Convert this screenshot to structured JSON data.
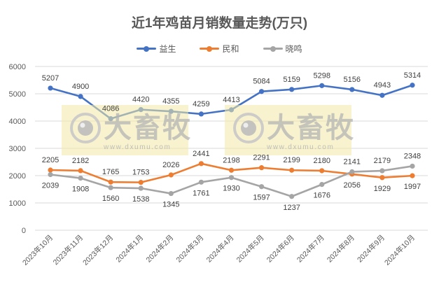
{
  "chart_data": {
    "type": "line",
    "title": "近1年鸡苗月销数量走势(万只)",
    "xlabel": "",
    "ylabel": "",
    "ylim": [
      0,
      6000
    ],
    "yticks": [
      0,
      1000,
      2000,
      3000,
      4000,
      5000,
      6000
    ],
    "grid": true,
    "legend_position": "top",
    "categories": [
      "2023年10月",
      "2023年11月",
      "2023年12月",
      "2024年1月",
      "2024年2月",
      "2024年3月",
      "2024年4月",
      "2024年5月",
      "2024年6月",
      "2024年7月",
      "2024年8月",
      "2024年9月",
      "2024年10月"
    ],
    "series": [
      {
        "name": "益生",
        "color": "#4472C4",
        "values": [
          5207,
          4900,
          4086,
          4420,
          4355,
          4259,
          4413,
          5084,
          5159,
          5298,
          5156,
          4943,
          5314
        ],
        "label_pos": "above"
      },
      {
        "name": "民和",
        "color": "#ED7D31",
        "values": [
          2205,
          2182,
          1765,
          1753,
          2026,
          2441,
          2198,
          2291,
          2199,
          2180,
          2056,
          1929,
          1997
        ],
        "label_pos": "above_except_last3"
      },
      {
        "name": "晓鸣",
        "color": "#A5A5A5",
        "values": [
          2039,
          1908,
          1560,
          1538,
          1345,
          1761,
          1930,
          1597,
          1237,
          1676,
          2141,
          2179,
          2348
        ],
        "label_pos": "below_except_last3"
      }
    ]
  },
  "watermark": {
    "brand": "大畜牧",
    "url": "www.dxumu.com",
    "count": 2
  }
}
